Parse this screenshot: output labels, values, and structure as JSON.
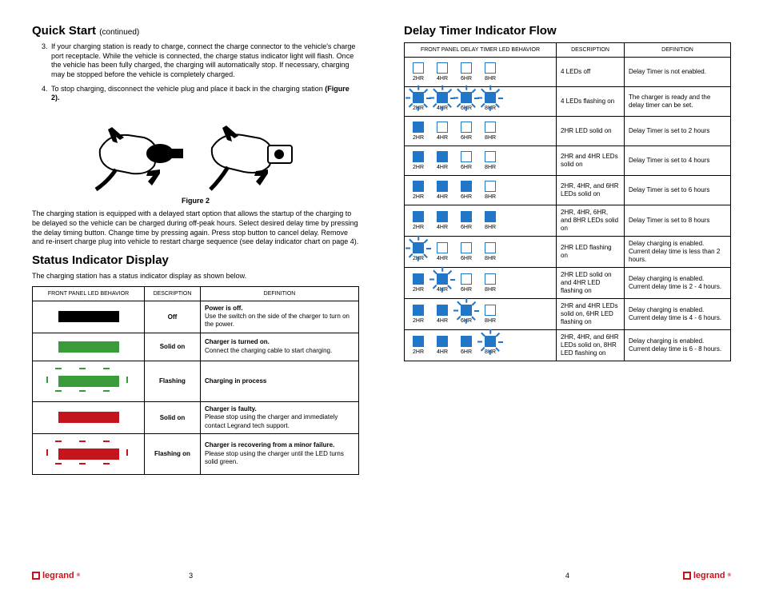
{
  "left": {
    "heading": "Quick Start",
    "continued": "(continued)",
    "steps": [
      {
        "num": "3.",
        "text": "If your charging station is ready to charge, connect the charge connector to the vehicle's charge port receptacle. While the vehicle is connected, the charge status indicator light will flash. Once the vehicle has been fully charged, the charging will automatically stop. If necessary, charging may be stopped before the vehicle is completely charged."
      },
      {
        "num": "4.",
        "text": "To stop charging, disconnect the vehicle plug and place it back in the charging station ",
        "bold": "(Figure 2)."
      }
    ],
    "fig_caption": "Figure 2",
    "para_after_fig": "The charging station is equipped with a delayed start option that allows the startup of the charging to be delayed so the vehicle can be charged during off-peak hours. Select desired delay time by pressing the delay timing button. Change time by pressing again. Press stop button to cancel delay. Remove and re-insert charge plug into vehicle to restart charge sequence (see delay indicator chart on page 4).",
    "status_heading": "Status Indicator Display",
    "status_intro": "The charging station has a status indicator display as shown below.",
    "status_headers": [
      "FRONT PANEL LED BEHAVIOR",
      "DESCRIPTION",
      "DEFINITION"
    ],
    "status_rows": [
      {
        "bar_color": "black",
        "flashing": false,
        "desc": "Off",
        "def_bold": "Power is off.",
        "def": "Use the switch on the side of the charger to turn on the power."
      },
      {
        "bar_color": "green",
        "flashing": false,
        "desc": "Solid on",
        "def_bold": "Charger is turned on.",
        "def": "Connect the charging cable to start charging."
      },
      {
        "bar_color": "green",
        "flashing": true,
        "desc": "Flashing",
        "def_bold": "Charging in process",
        "def": ""
      },
      {
        "bar_color": "red",
        "flashing": false,
        "desc": "Solid on",
        "def_bold": "Charger is faulty.",
        "def": "Please stop using the charger and immediately contact Legrand tech support."
      },
      {
        "bar_color": "red",
        "flashing": true,
        "desc": "Flashing on",
        "def_bold": "Charger is recovering from a minor failure.",
        "def": "Please stop using the charger until the LED turns solid green."
      }
    ],
    "page_num": "3",
    "brand": "legrand"
  },
  "right": {
    "heading": "Delay Timer Indicator Flow",
    "headers": [
      "FRONT PANEL DELAY TIMER LED BEHAVIOR",
      "DESCRIPTION",
      "DEFINITION"
    ],
    "led_labels": [
      "2HR",
      "4HR",
      "6HR",
      "8HR"
    ],
    "rows": [
      {
        "leds": [
          "off",
          "off",
          "off",
          "off"
        ],
        "flash": [],
        "desc": "4 LEDs off",
        "def": "Delay Timer is not enabled."
      },
      {
        "leds": [
          "on",
          "on",
          "on",
          "on"
        ],
        "flash": [
          0,
          1,
          2,
          3
        ],
        "desc": "4 LEDs flashing on",
        "def": "The charger is ready and the delay timer can be set."
      },
      {
        "leds": [
          "on",
          "off",
          "off",
          "off"
        ],
        "flash": [],
        "desc": "2HR LED solid on",
        "def": "Delay Timer is set to 2 hours"
      },
      {
        "leds": [
          "on",
          "on",
          "off",
          "off"
        ],
        "flash": [],
        "desc": "2HR and 4HR LEDs solid on",
        "def": "Delay Timer is set to 4 hours"
      },
      {
        "leds": [
          "on",
          "on",
          "on",
          "off"
        ],
        "flash": [],
        "desc": "2HR, 4HR, and 6HR LEDs solid on",
        "def": "Delay Timer is set to 6 hours"
      },
      {
        "leds": [
          "on",
          "on",
          "on",
          "on"
        ],
        "flash": [],
        "desc": "2HR, 4HR, 6HR, and 8HR LEDs solid on",
        "def": "Delay Timer is set to 8 hours"
      },
      {
        "leds": [
          "on",
          "off",
          "off",
          "off"
        ],
        "flash": [
          0
        ],
        "desc": "2HR LED flashing on",
        "def": "Delay charging is enabled.\nCurrent delay time is less than 2 hours."
      },
      {
        "leds": [
          "on",
          "on",
          "off",
          "off"
        ],
        "flash": [
          1
        ],
        "desc": "2HR LED solid on and 4HR LED flashing on",
        "def": "Delay charging is enabled.\nCurrent delay time is 2 - 4 hours."
      },
      {
        "leds": [
          "on",
          "on",
          "on",
          "off"
        ],
        "flash": [
          2
        ],
        "desc": "2HR and 4HR LEDs solid on, 6HR LED flashing on",
        "def": "Delay charging is enabled.\nCurrent delay time is 4 - 6 hours."
      },
      {
        "leds": [
          "on",
          "on",
          "on",
          "on"
        ],
        "flash": [
          3
        ],
        "desc": "2HR, 4HR, and 6HR LEDs solid on, 8HR LED flashing on",
        "def": "Delay charging is enabled.\nCurrent delay time is 6 - 8 hours."
      }
    ],
    "page_num": "4",
    "brand": "legrand"
  },
  "colors": {
    "blue": "#2176c7",
    "green": "#3a9b3a",
    "red": "#c4151c",
    "black": "#000000"
  }
}
